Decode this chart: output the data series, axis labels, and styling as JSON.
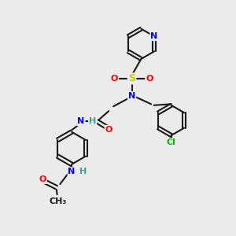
{
  "bg_color": "#ebebeb",
  "bond_color": "#1a1a1a",
  "bond_width": 1.5,
  "atom_colors": {
    "N": "#0000ff",
    "O": "#ff0000",
    "S": "#cccc00",
    "Cl": "#00bb00",
    "H": "#4a9a9a",
    "C": "#1a1a1a"
  },
  "font_size_atom": 8,
  "font_size_small": 7
}
